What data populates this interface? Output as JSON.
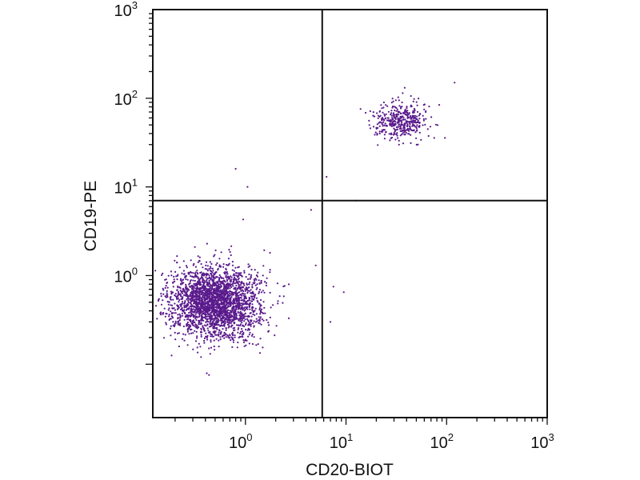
{
  "chart_data": {
    "type": "scatter",
    "title": "",
    "xlabel": "CD20-BIOT",
    "ylabel": "CD19-PE",
    "x_scale": "log",
    "y_scale": "log",
    "xlim": [
      0.12,
      1000
    ],
    "ylim": [
      0.025,
      1000
    ],
    "x_ticks": [
      {
        "value": 1,
        "base": "10",
        "exp": "0"
      },
      {
        "value": 10,
        "base": "10",
        "exp": "1"
      },
      {
        "value": 100,
        "base": "10",
        "exp": "2"
      },
      {
        "value": 1000,
        "base": "10",
        "exp": "3"
      }
    ],
    "y_ticks": [
      {
        "value": 1,
        "base": "10",
        "exp": "0"
      },
      {
        "value": 10,
        "base": "10",
        "exp": "1"
      },
      {
        "value": 100,
        "base": "10",
        "exp": "2"
      },
      {
        "value": 1000,
        "base": "10",
        "exp": "3"
      }
    ],
    "grid": false,
    "quadrant_gate": {
      "x": 5.8,
      "y": 7.0
    },
    "point_color": "#5a1a8c",
    "populations": [
      {
        "center_x": 0.5,
        "center_y": 0.5,
        "spread_log_x": 0.22,
        "spread_log_y": 0.2,
        "count": 2600
      },
      {
        "center_x": 35,
        "center_y": 55,
        "spread_log_x": 0.13,
        "spread_log_y": 0.1,
        "count": 420
      }
    ],
    "outliers": [
      {
        "x": 0.8,
        "y": 16
      },
      {
        "x": 1.05,
        "y": 10
      },
      {
        "x": 0.95,
        "y": 4.3
      },
      {
        "x": 4.5,
        "y": 5.5
      },
      {
        "x": 6.4,
        "y": 13
      },
      {
        "x": 12.5,
        "y": 7.0
      },
      {
        "x": 5.0,
        "y": 1.3
      },
      {
        "x": 7.5,
        "y": 0.75
      },
      {
        "x": 9.5,
        "y": 0.65
      },
      {
        "x": 7.0,
        "y": 0.3
      },
      {
        "x": 120,
        "y": 150
      }
    ]
  }
}
